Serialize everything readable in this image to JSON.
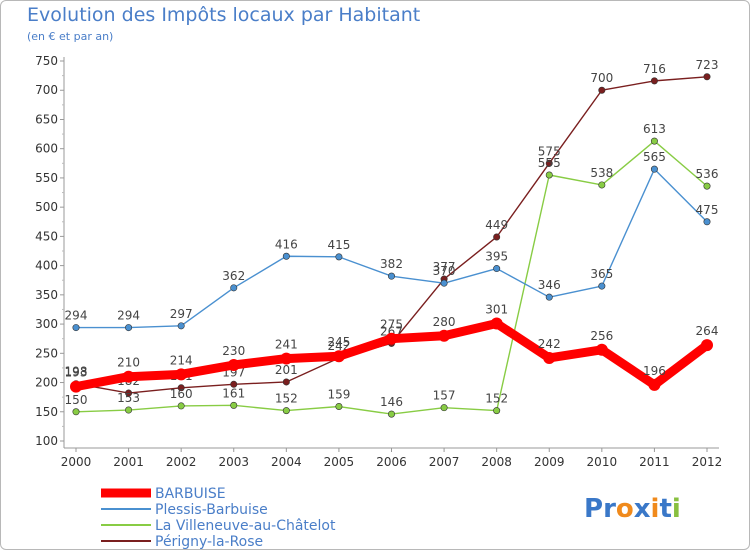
{
  "chart_data": {
    "type": "line",
    "title": "Evolution des Impôts locaux par Habitant",
    "subtitle": "(en € et par an)",
    "x": [
      "2000",
      "2001",
      "2002",
      "2003",
      "2004",
      "2005",
      "2006",
      "2007",
      "2008",
      "2009",
      "2010",
      "2011",
      "2012"
    ],
    "ylim": [
      100,
      750
    ],
    "yticks": [
      100,
      150,
      200,
      250,
      300,
      350,
      400,
      450,
      500,
      550,
      600,
      650,
      700,
      750
    ],
    "grid": false,
    "legend_position": "bottom-left",
    "series": [
      {
        "name": "BARBUISE",
        "color": "#ff0000",
        "values": [
          193,
          210,
          214,
          230,
          241,
          245,
          275,
          280,
          301,
          242,
          256,
          196,
          264
        ]
      },
      {
        "name": "Plessis-Barbuise",
        "color": "#4a90d0",
        "values": [
          294,
          294,
          297,
          362,
          416,
          415,
          382,
          370,
          395,
          346,
          365,
          565,
          475
        ]
      },
      {
        "name": "La Villeneuve-au-Châtelot",
        "color": "#88cc44",
        "values": [
          150,
          153,
          160,
          161,
          152,
          159,
          146,
          157,
          152,
          555,
          538,
          613,
          536
        ]
      },
      {
        "name": "Périgny-la-Rose",
        "color": "#7a1f1f",
        "values": [
          198,
          182,
          191,
          197,
          201,
          242,
          267,
          377,
          449,
          575,
          700,
          716,
          723
        ]
      }
    ]
  },
  "brand": {
    "text": "Proxiti",
    "letters": [
      "P",
      "r",
      "o",
      "x",
      "i",
      "t",
      "i"
    ],
    "colors": [
      "#3a78c8",
      "#3a78c8",
      "#f08a1c",
      "#3a78c8",
      "#f08a1c",
      "#3a78c8",
      "#88c040"
    ]
  }
}
